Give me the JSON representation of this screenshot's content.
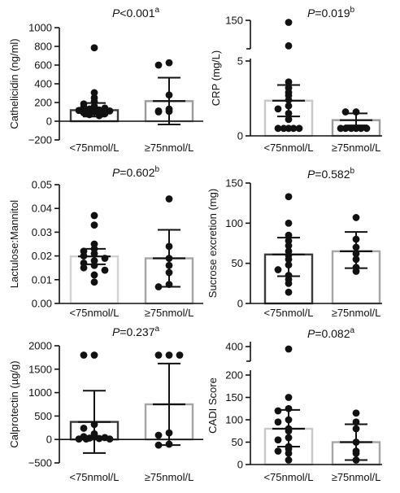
{
  "chart_data": [
    {
      "type": "scatter",
      "ylabel": "Cathelicidin (ng/ml)",
      "ylim": [
        -200,
        1000
      ],
      "yticks": [
        -200,
        0,
        200,
        400,
        600,
        800,
        1000
      ],
      "tick_labels": [
        "−200",
        "0",
        "200",
        "400",
        "600",
        "800",
        "1000"
      ],
      "annotation": "P<0.001",
      "annotation_sup": "a",
      "categories": [
        "<75nmol/L",
        "≥75nmol/L"
      ],
      "bar_colors": [
        "#3a3a3a",
        "#9a9a9a"
      ],
      "groups": [
        {
          "name": "<75nmol/L",
          "mean": 118,
          "err_low": 50,
          "err_high": 195,
          "points": [
            785,
            305,
            250,
            210,
            185,
            160,
            150,
            140,
            130,
            120,
            115,
            110,
            100,
            90,
            80,
            70,
            60
          ]
        },
        {
          "name": "≥75nmol/L",
          "mean": 215,
          "err_low": -35,
          "err_high": 465,
          "points": [
            625,
            600,
            280,
            130,
            110,
            105,
            100
          ]
        }
      ]
    },
    {
      "type": "scatter",
      "ylabel": "CRP (mg/L)",
      "ylim": [
        0,
        150
      ],
      "yticks": [
        0,
        5,
        150
      ],
      "tick_labels": [
        "0",
        "5",
        "150"
      ],
      "broken_axis": true,
      "annotation": "P=0.019",
      "annotation_sup": "b",
      "categories": [
        "<75nmol/L",
        "≥75nmol/L"
      ],
      "bar_colors": [
        "#c8c8c8",
        "#9a9a9a"
      ],
      "groups": [
        {
          "name": "<75nmol/L",
          "mean": 2.35,
          "err_low": 1.3,
          "err_high": 3.4,
          "points": [
            145,
            14,
            3.6,
            3.2,
            2.9,
            2.7,
            2.4,
            2.0,
            1.8,
            1.5,
            1.1,
            0.5,
            0.5,
            0.5,
            0.5,
            0.5
          ]
        },
        {
          "name": "≥75nmol/L",
          "mean": 1.05,
          "err_low": 0.7,
          "err_high": 1.5,
          "points": [
            1.6,
            1.6,
            0.5,
            0.5,
            0.5,
            0.5,
            0.5,
            0.5
          ]
        }
      ]
    },
    {
      "type": "scatter",
      "ylabel": "Lactulose:Mannitol",
      "ylim": [
        0,
        0.05
      ],
      "yticks": [
        0,
        0.01,
        0.02,
        0.03,
        0.04,
        0.05
      ],
      "tick_labels": [
        "0.00",
        "0.01",
        "0.02",
        "0.03",
        "0.04",
        "0.05"
      ],
      "annotation": "P=0.602",
      "annotation_sup": "b",
      "categories": [
        "<75nmol/L",
        "≥75nmol/L"
      ],
      "bar_colors": [
        "#d3d3d3",
        "#a5a5a5"
      ],
      "groups": [
        {
          "name": "<75nmol/L",
          "mean": 0.0198,
          "err_low": 0.0165,
          "err_high": 0.023,
          "points": [
            0.037,
            0.033,
            0.025,
            0.023,
            0.022,
            0.021,
            0.02,
            0.019,
            0.018,
            0.017,
            0.016,
            0.015,
            0.014,
            0.012,
            0.009
          ]
        },
        {
          "name": "≥75nmol/L",
          "mean": 0.019,
          "err_low": 0.007,
          "err_high": 0.031,
          "points": [
            0.044,
            0.024,
            0.019,
            0.016,
            0.013,
            0.008,
            0.007
          ]
        }
      ]
    },
    {
      "type": "scatter",
      "ylabel": "Sucrose excretion (mg)",
      "ylim": [
        0,
        150
      ],
      "yticks": [
        0,
        50,
        100,
        150
      ],
      "tick_labels": [
        "0",
        "50",
        "100",
        "150"
      ],
      "annotation": "P=0.582",
      "annotation_sup": "b",
      "categories": [
        "<75nmol/L",
        "≥75nmol/L"
      ],
      "bar_colors": [
        "#3a3a3a",
        "#a5a5a5"
      ],
      "groups": [
        {
          "name": "<75nmol/L",
          "mean": 61,
          "err_low": 34,
          "err_high": 82,
          "points": [
            133,
            100,
            85,
            78,
            72,
            65,
            60,
            55,
            48,
            42,
            35,
            30,
            25,
            14
          ]
        },
        {
          "name": "≥75nmol/L",
          "mean": 65,
          "err_low": 44,
          "err_high": 89,
          "points": [
            107,
            80,
            70,
            62,
            55,
            45,
            40
          ]
        }
      ]
    },
    {
      "type": "scatter",
      "ylabel": "Calprotectin (µg/g)",
      "ylim": [
        -500,
        2000
      ],
      "yticks": [
        -500,
        0,
        500,
        1000,
        1500,
        2000
      ],
      "tick_labels": [
        "−500",
        "0",
        "500",
        "1000",
        "1500",
        "2000"
      ],
      "annotation": "P=0.237",
      "annotation_sup": "a",
      "categories": [
        "<75nmol/L",
        "≥75nmol/L"
      ],
      "bar_colors": [
        "#3a3a3a",
        "#a5a5a5"
      ],
      "groups": [
        {
          "name": "<75nmol/L",
          "mean": 375,
          "err_low": -290,
          "err_high": 1040,
          "points": [
            1800,
            1800,
            320,
            240,
            120,
            80,
            60,
            40,
            30,
            20,
            10,
            10,
            10
          ]
        },
        {
          "name": "≥75nmol/L",
          "mean": 750,
          "err_low": -120,
          "err_high": 1620,
          "points": [
            1800,
            1800,
            1800,
            140,
            90,
            -100,
            -120
          ]
        }
      ]
    },
    {
      "type": "scatter",
      "ylabel": "CADI Score",
      "ylim": [
        0,
        400
      ],
      "yticks": [
        0,
        50,
        100,
        150,
        200,
        400
      ],
      "tick_labels": [
        "0",
        "50",
        "100",
        "150",
        "200",
        "400"
      ],
      "broken_axis": true,
      "annotation": "P=0.082",
      "annotation_sup": "a",
      "categories": [
        "<75nmol/L",
        "≥75nmol/L"
      ],
      "bar_colors": [
        "#c8c8c8",
        "#a5a5a5"
      ],
      "groups": [
        {
          "name": "<75nmol/L",
          "mean": 80,
          "err_low": 40,
          "err_high": 122,
          "points": [
            380,
            150,
            125,
            120,
            100,
            95,
            80,
            75,
            60,
            55,
            40,
            35,
            30,
            25,
            10
          ]
        },
        {
          "name": "≥75nmol/L",
          "mean": 50,
          "err_low": 10,
          "err_high": 90,
          "points": [
            115,
            95,
            80,
            50,
            30,
            25,
            10
          ]
        }
      ]
    }
  ]
}
